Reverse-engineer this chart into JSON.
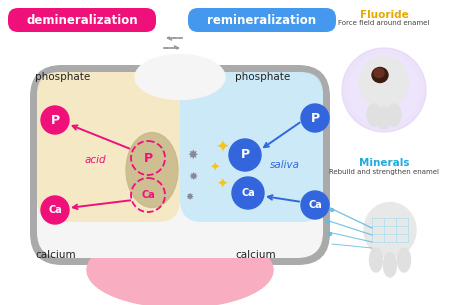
{
  "bg_color": "#ffffff",
  "demin_label": "demineralization",
  "remin_label": "remineralization",
  "demin_box_color": "#f0107a",
  "remin_box_color": "#4499ee",
  "phosphate_label": "phosphate",
  "calcium_label": "calcium",
  "acid_label": "acid",
  "saliva_label": "saliva",
  "P_color_solid": "#f0107a",
  "Ca_color_solid": "#f0107a",
  "P_color_blue": "#3366dd",
  "Ca_color_blue": "#3366dd",
  "arrow_color_pink": "#f0107a",
  "arrow_color_blue": "#3366dd",
  "arrow_dashed_color": "#999999",
  "tooth_outline_color": "#aaaaaa",
  "tooth_inner_color": "#f5f5f5",
  "tooth_gum_color": "#f8aec0",
  "acid_bg_color": "#f5e8c0",
  "saliva_bg_color": "#c8e8f8",
  "demineralized_patch_color": "#c8b88a",
  "fluoride_label": "Fluoride",
  "fluoride_sub": "Force field around enamel",
  "minerals_label": "Minerals",
  "minerals_sub": "Rebuild and strengthen enamel",
  "fluoride_color": "#e8a800",
  "minerals_color": "#22aadd",
  "sparkle_color": "#f5c518",
  "debris_color": "#888899"
}
